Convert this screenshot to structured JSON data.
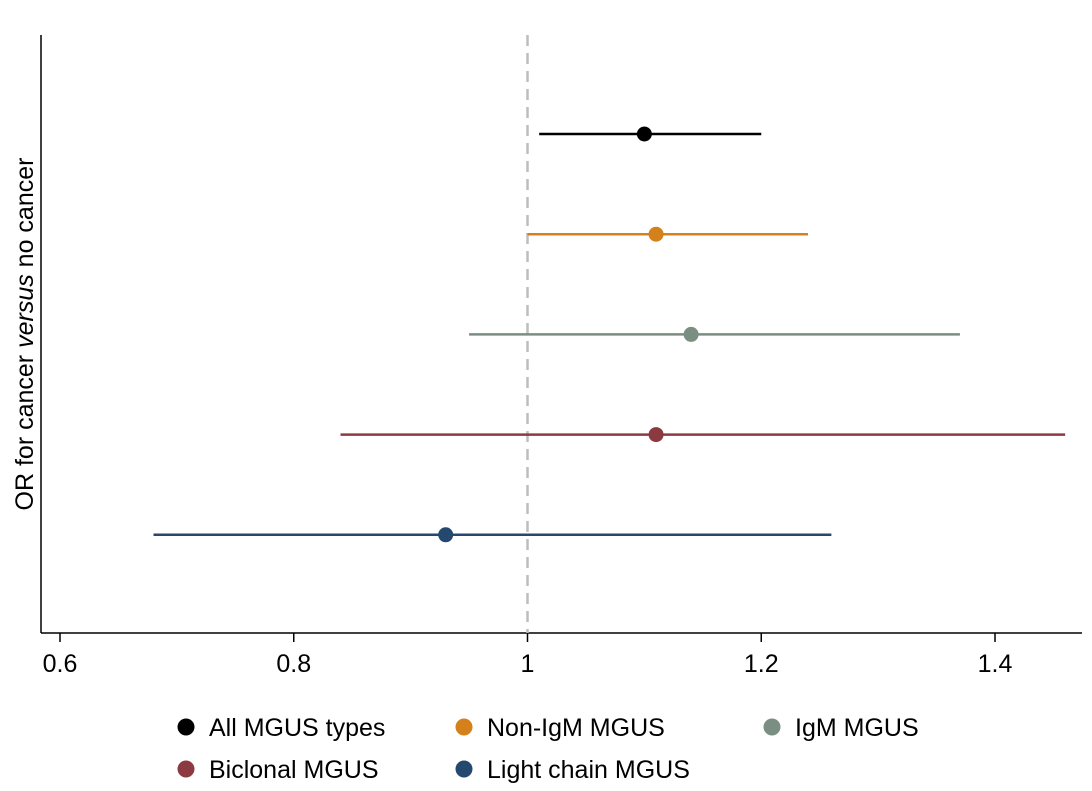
{
  "chart_data": {
    "type": "scatter",
    "title": "",
    "xlabel": "",
    "ylabel": {
      "prefix": "OR for cancer ",
      "italic": "versus",
      "suffix": " no cancer"
    },
    "xlim": [
      0.6,
      1.46
    ],
    "xticks": [
      0.6,
      0.8,
      1.0,
      1.2,
      1.4
    ],
    "xtick_labels": [
      "0.6",
      "0.8",
      "1",
      "1.2",
      "1.4"
    ],
    "reference_line": 1.0,
    "grid": false,
    "legend_position": "bottom",
    "series": [
      {
        "name": "All MGUS types",
        "or": 1.1,
        "lower": 1.01,
        "upper": 1.2,
        "color": "#000000"
      },
      {
        "name": "Non-IgM MGUS",
        "or": 1.11,
        "lower": 1.0,
        "upper": 1.24,
        "color": "#d4801b"
      },
      {
        "name": "IgM MGUS",
        "or": 1.14,
        "lower": 0.95,
        "upper": 1.37,
        "color": "#7a8f82"
      },
      {
        "name": "Biclonal MGUS",
        "or": 1.11,
        "lower": 0.84,
        "upper": 1.46,
        "color": "#8b3a3f"
      },
      {
        "name": "Light chain MGUS",
        "or": 0.93,
        "lower": 0.68,
        "upper": 1.26,
        "color": "#24486e"
      }
    ]
  }
}
